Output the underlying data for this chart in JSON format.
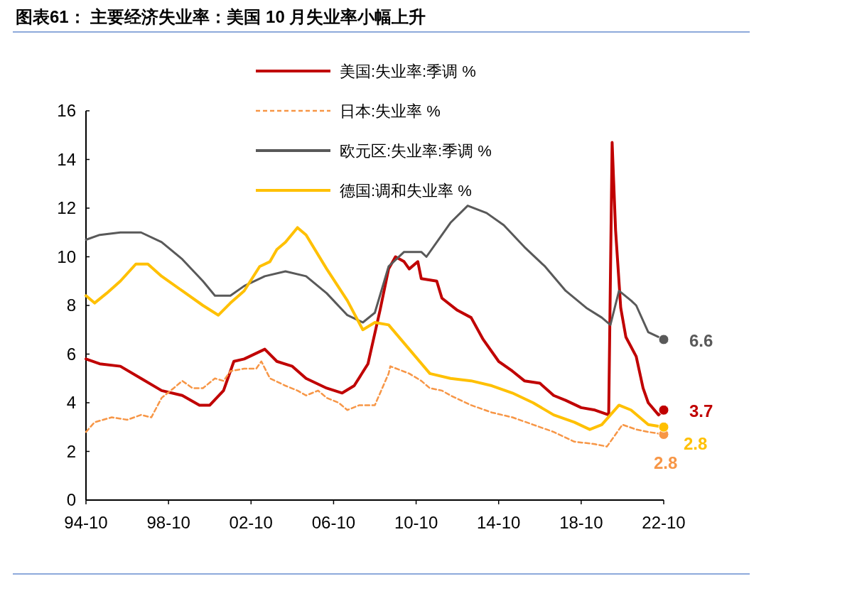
{
  "chart_data": {
    "type": "line",
    "title": "图表61： 主要经济失业率：美国 10 月失业率小幅上升",
    "xlim": [
      "1994-10",
      "2022-10"
    ],
    "xticks": [
      {
        "value": "1994-10",
        "label": "94-10"
      },
      {
        "value": "1998-10",
        "label": "98-10"
      },
      {
        "value": "2002-10",
        "label": "02-10"
      },
      {
        "value": "2006-10",
        "label": "06-10"
      },
      {
        "value": "2010-10",
        "label": "10-10"
      },
      {
        "value": "2014-10",
        "label": "14-10"
      },
      {
        "value": "2018-10",
        "label": "18-10"
      },
      {
        "value": "2022-10",
        "label": "22-10"
      }
    ],
    "ylim": [
      0,
      16
    ],
    "yticks": [
      0,
      2,
      4,
      6,
      8,
      10,
      12,
      14,
      16
    ],
    "grid": false,
    "legend": "top",
    "series": [
      {
        "name": "美国:失业率:季调 %",
        "color": "#c00000",
        "line_style": "solid",
        "x": [
          "1994-10",
          "1995-06",
          "1996-06",
          "1997-06",
          "1998-06",
          "1999-06",
          "2000-04",
          "2000-10",
          "2001-06",
          "2001-12",
          "2002-06",
          "2003-06",
          "2004-01",
          "2004-10",
          "2005-06",
          "2006-06",
          "2007-03",
          "2007-10",
          "2008-06",
          "2009-01",
          "2009-06",
          "2009-10",
          "2010-03",
          "2010-06",
          "2010-11",
          "2011-01",
          "2011-10",
          "2012-01",
          "2012-10",
          "2013-06",
          "2014-01",
          "2014-10",
          "2015-06",
          "2016-01",
          "2016-10",
          "2017-06",
          "2018-01",
          "2018-10",
          "2019-06",
          "2020-02",
          "2020-04",
          "2020-06",
          "2020-09",
          "2020-12",
          "2021-06",
          "2021-10",
          "2022-01",
          "2022-07",
          "2022-10"
        ],
        "values": [
          5.8,
          5.6,
          5.5,
          5.0,
          4.5,
          4.3,
          3.9,
          3.9,
          4.5,
          5.7,
          5.8,
          6.2,
          5.7,
          5.5,
          5.0,
          4.6,
          4.4,
          4.7,
          5.6,
          7.8,
          9.5,
          10.0,
          9.8,
          9.5,
          9.8,
          9.1,
          9.0,
          8.3,
          7.8,
          7.5,
          6.6,
          5.7,
          5.3,
          4.9,
          4.8,
          4.3,
          4.1,
          3.8,
          3.7,
          3.5,
          14.7,
          11.1,
          7.9,
          6.7,
          5.9,
          4.6,
          4.0,
          3.5,
          3.7
        ]
      },
      {
        "name": "日本:失业率 %",
        "color": "#f79646",
        "line_style": "dashed",
        "x": [
          "1994-10",
          "1995-03",
          "1996-01",
          "1996-10",
          "1997-06",
          "1997-12",
          "1998-06",
          "1999-01",
          "1999-06",
          "1999-12",
          "2000-06",
          "2001-01",
          "2001-06",
          "2001-10",
          "2002-06",
          "2003-01",
          "2003-04",
          "2003-09",
          "2004-06",
          "2005-01",
          "2005-06",
          "2006-01",
          "2006-06",
          "2007-01",
          "2007-06",
          "2008-01",
          "2008-10",
          "2009-06",
          "2009-07",
          "2010-06",
          "2011-01",
          "2011-06",
          "2012-01",
          "2012-06",
          "2013-06",
          "2014-06",
          "2015-06",
          "2016-06",
          "2017-06",
          "2018-06",
          "2019-06",
          "2020-01",
          "2020-10",
          "2021-06",
          "2022-01",
          "2022-10"
        ],
        "values": [
          2.8,
          3.2,
          3.4,
          3.3,
          3.5,
          3.4,
          4.2,
          4.6,
          4.9,
          4.6,
          4.6,
          5.0,
          4.9,
          5.3,
          5.4,
          5.4,
          5.7,
          5.0,
          4.7,
          4.5,
          4.3,
          4.5,
          4.2,
          4.0,
          3.7,
          3.9,
          3.9,
          5.2,
          5.5,
          5.2,
          4.9,
          4.6,
          4.5,
          4.3,
          3.9,
          3.6,
          3.4,
          3.1,
          2.8,
          2.4,
          2.3,
          2.2,
          3.1,
          2.9,
          2.8,
          2.7
        ]
      },
      {
        "name": "欧元区:失业率:季调 %",
        "color": "#595959",
        "line_style": "solid",
        "x": [
          "1994-10",
          "1995-06",
          "1996-06",
          "1997-06",
          "1998-06",
          "1999-06",
          "2000-06",
          "2001-01",
          "2001-10",
          "2002-06",
          "2003-06",
          "2004-06",
          "2005-06",
          "2006-06",
          "2007-06",
          "2008-03",
          "2008-10",
          "2009-06",
          "2010-03",
          "2011-01",
          "2011-04",
          "2011-12",
          "2012-06",
          "2013-04",
          "2014-03",
          "2015-01",
          "2016-01",
          "2017-01",
          "2018-01",
          "2019-01",
          "2019-10",
          "2020-03",
          "2020-08",
          "2021-03",
          "2021-06",
          "2022-01",
          "2022-10"
        ],
        "values": [
          10.7,
          10.9,
          11.0,
          11.0,
          10.6,
          9.9,
          9.0,
          8.4,
          8.4,
          8.8,
          9.2,
          9.4,
          9.2,
          8.5,
          7.6,
          7.3,
          7.7,
          9.6,
          10.2,
          10.2,
          10.0,
          10.8,
          11.4,
          12.1,
          11.8,
          11.3,
          10.4,
          9.6,
          8.6,
          7.9,
          7.5,
          7.2,
          8.6,
          8.2,
          8.0,
          6.9,
          6.6
        ]
      },
      {
        "name": "德国:调和失业率 %",
        "color": "#ffc000",
        "line_style": "solid",
        "x": [
          "1994-10",
          "1995-03",
          "1995-10",
          "1996-06",
          "1997-03",
          "1997-10",
          "1998-06",
          "1999-06",
          "2000-06",
          "2001-03",
          "2001-10",
          "2002-06",
          "2003-03",
          "2003-09",
          "2004-01",
          "2004-06",
          "2005-01",
          "2005-06",
          "2006-06",
          "2007-06",
          "2008-03",
          "2008-10",
          "2009-06",
          "2010-06",
          "2011-06",
          "2012-06",
          "2013-06",
          "2014-06",
          "2015-06",
          "2016-06",
          "2017-06",
          "2018-06",
          "2019-03",
          "2019-10",
          "2020-08",
          "2021-03",
          "2022-01",
          "2022-10"
        ],
        "values": [
          8.4,
          8.1,
          8.5,
          9.0,
          9.7,
          9.7,
          9.2,
          8.6,
          8.0,
          7.6,
          8.1,
          8.6,
          9.6,
          9.8,
          10.3,
          10.6,
          11.2,
          10.9,
          9.5,
          8.2,
          7.0,
          7.3,
          7.2,
          6.2,
          5.2,
          5.0,
          4.9,
          4.7,
          4.4,
          4.0,
          3.5,
          3.2,
          2.9,
          3.1,
          3.9,
          3.7,
          3.1,
          3.0
        ]
      }
    ],
    "annotations": [
      {
        "text": "3.7",
        "x": "2022-10",
        "y": 3.7
      },
      {
        "text": "2.8",
        "x": "2022-10",
        "y": 2.7
      },
      {
        "text": "6.6",
        "x": "2022-10",
        "y": 6.6
      },
      {
        "text": "2.8",
        "x": "2022-10",
        "y": 3.0
      }
    ]
  }
}
